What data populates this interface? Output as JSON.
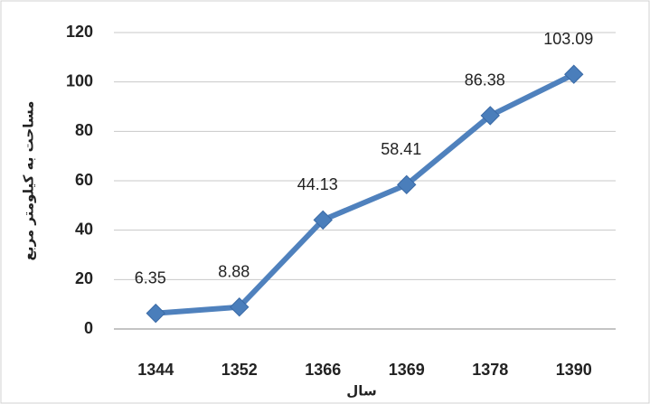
{
  "chart_data": {
    "type": "line",
    "y_axis_label": "مساحت به کیلومتر مربع",
    "x_axis_label": "سال",
    "categories": [
      "1344",
      "1352",
      "1366",
      "1369",
      "1378",
      "1390"
    ],
    "values": [
      6.35,
      8.88,
      44.13,
      58.41,
      86.38,
      103.09
    ],
    "color": "#4f81bd",
    "ylim": [
      0,
      120
    ],
    "yticks": [
      0,
      20,
      40,
      60,
      80,
      100,
      120
    ],
    "grid": true
  }
}
